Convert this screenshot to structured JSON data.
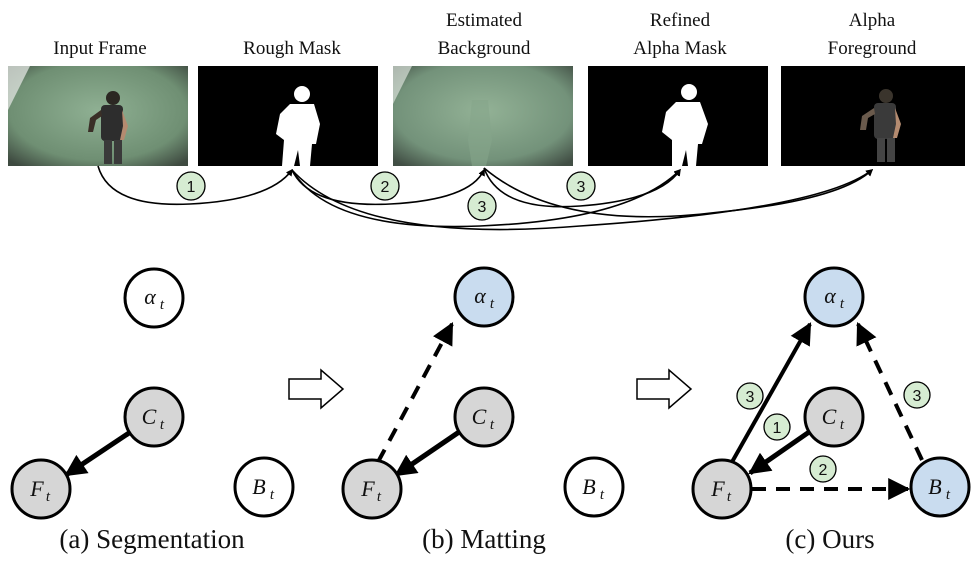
{
  "pipeline": {
    "panels": [
      {
        "id": "input",
        "label_lines": [
          "Input Frame"
        ]
      },
      {
        "id": "rough",
        "label_lines": [
          "Rough Mask"
        ]
      },
      {
        "id": "background",
        "label_lines": [
          "Estimated",
          "Background"
        ]
      },
      {
        "id": "alpha",
        "label_lines": [
          "Refined",
          "Alpha Mask"
        ]
      },
      {
        "id": "foreground",
        "label_lines": [
          "Alpha",
          "Foreground"
        ]
      }
    ],
    "step_badges": [
      "1",
      "2",
      "3",
      "3"
    ]
  },
  "graphs": {
    "nodes": {
      "alpha": {
        "symbol": "α",
        "sub": "t"
      },
      "C": {
        "symbol": "C",
        "sub": "t"
      },
      "F": {
        "symbol": "F",
        "sub": "t"
      },
      "B": {
        "symbol": "B",
        "sub": "t"
      }
    },
    "captions": {
      "segmentation": "(a) Segmentation",
      "matting": "(b) Matting",
      "ours": "(c) Ours"
    },
    "ours_badges": [
      "1",
      "2",
      "3",
      "3"
    ]
  },
  "colors": {
    "green_screen": "#7a9a7e",
    "gray_node": "#d6d6d6",
    "blue_node": "#c9dcef",
    "badge_fill": "#d6ecd2",
    "stroke": "#000000"
  }
}
